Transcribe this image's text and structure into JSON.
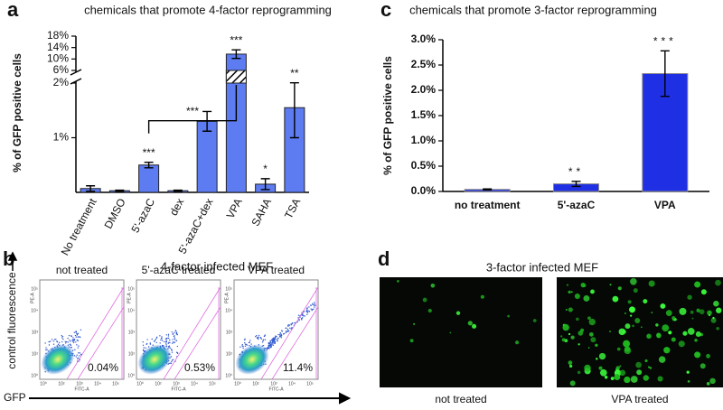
{
  "chart_data": [
    {
      "type": "bar",
      "letter": "a",
      "title": "chemicals that promote 4-factor reprogramming",
      "y_label": "% of GFP positive cells",
      "categories": [
        "No treatment",
        "DMSO",
        "5'-azaC",
        "dex",
        "5'-azaC+dex",
        "VPA",
        "SAHA",
        "TSA"
      ],
      "values": [
        0.07,
        0.03,
        0.5,
        0.03,
        1.3,
        11.7,
        0.15,
        1.55
      ],
      "errors": [
        0.05,
        0.01,
        0.05,
        0.01,
        0.18,
        1.5,
        0.1,
        0.55
      ],
      "annotations": [
        null,
        null,
        "***",
        null,
        null,
        "***",
        "*",
        "**"
      ],
      "bracket": {
        "label": "***",
        "between": [
          "5'-azaC",
          "VPA"
        ]
      },
      "color": "#5d7cf2",
      "ylim": [
        0,
        18
      ],
      "axis_break": [
        2,
        6
      ],
      "yticks": [
        {
          "value": 1,
          "label": "1%"
        },
        {
          "value": 2,
          "label": "2%"
        },
        {
          "value": 6,
          "label": "6%"
        },
        {
          "value": 10,
          "label": "10%"
        },
        {
          "value": 14,
          "label": "14%"
        },
        {
          "value": 18,
          "label": "18%"
        }
      ]
    },
    {
      "type": "bar",
      "letter": "c",
      "title": "chemicals that promote 3-factor reprogramming",
      "y_label": "% of GFP positive cells",
      "categories": [
        "no treatment",
        "5'-azaC",
        "VPA"
      ],
      "values": [
        0.04,
        0.15,
        2.33
      ],
      "errors": [
        0.01,
        0.05,
        0.45
      ],
      "annotations": [
        null,
        "**",
        "***"
      ],
      "color": "#1f2fe4",
      "ylim": [
        0,
        3
      ],
      "yticks": [
        {
          "value": 0,
          "label": "0.0%"
        },
        {
          "value": 0.5,
          "label": "0.5%"
        },
        {
          "value": 1,
          "label": "1.0%"
        },
        {
          "value": 1.5,
          "label": "1.5%"
        },
        {
          "value": 2,
          "label": "2.0%"
        },
        {
          "value": 2.5,
          "label": "2.5%"
        },
        {
          "value": 3,
          "label": "3.0%"
        }
      ]
    }
  ],
  "flow_panel": {
    "letter": "b",
    "title": "4-factor infected MEF",
    "y_axis_label": "control fluorescence",
    "x_axis_label": "GFP",
    "plot_x_label": "FITC-A",
    "plot_y_label": "PE-A",
    "plot_ticks": [
      "10⁰",
      "10²",
      "10³",
      "10⁴",
      "10⁵"
    ],
    "plots": [
      {
        "title": "not treated",
        "percent": "0.04%"
      },
      {
        "title": "5'-azaC treated",
        "percent": "0.53%"
      },
      {
        "title": "VPA treated",
        "percent": "11.4%"
      }
    ]
  },
  "image_panel": {
    "letter": "d",
    "title": "3-factor infected MEF",
    "images": [
      {
        "label": "not treated"
      },
      {
        "label": "VPA treated"
      }
    ]
  }
}
